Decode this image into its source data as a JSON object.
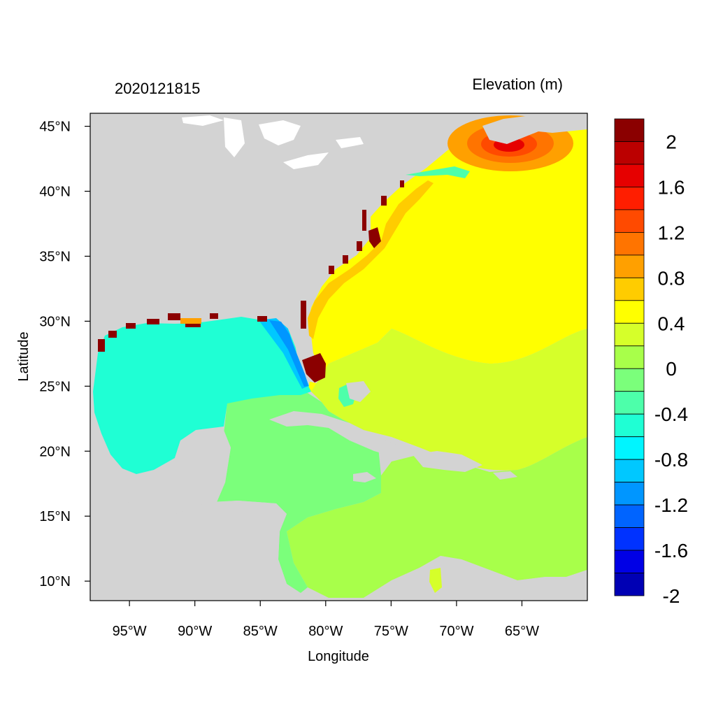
{
  "header": {
    "date_label": "2020121815",
    "variable_label": "Elevation (m)"
  },
  "axes": {
    "xlabel": "Longitude",
    "ylabel": "Latitude",
    "x_ticks": [
      {
        "value": -95,
        "label": "95°W"
      },
      {
        "value": -90,
        "label": "90°W"
      },
      {
        "value": -85,
        "label": "85°W"
      },
      {
        "value": -80,
        "label": "80°W"
      },
      {
        "value": -75,
        "label": "75°W"
      },
      {
        "value": -70,
        "label": "70°W"
      },
      {
        "value": -65,
        "label": "65°W"
      }
    ],
    "y_ticks": [
      {
        "value": 45,
        "label": "45°N"
      },
      {
        "value": 40,
        "label": "40°N"
      },
      {
        "value": 35,
        "label": "35°N"
      },
      {
        "value": 30,
        "label": "30°N"
      },
      {
        "value": 25,
        "label": "25°N"
      },
      {
        "value": 20,
        "label": "20°N"
      },
      {
        "value": 15,
        "label": "15°N"
      },
      {
        "value": 10,
        "label": "10°N"
      }
    ],
    "lon_range": [
      -98,
      -60
    ],
    "lat_range": [
      8.5,
      46
    ]
  },
  "colors": {
    "land": "#d3d3d3",
    "gulf": "#1fffd4",
    "caribbean_west": "#7bff7b",
    "caribbean_east": "#a8ff4a",
    "atlantic_south": "#d6ff2a",
    "atlantic": "#ffff00",
    "coast_orange": "#ffcc00",
    "coast_red": "#8b0000",
    "high_center": "#ff2200"
  },
  "colorbar": {
    "levels": [
      {
        "color": "#8b0000"
      },
      {
        "color": "#bb0000"
      },
      {
        "color": "#e60000"
      },
      {
        "color": "#ff1e00"
      },
      {
        "color": "#ff4a00"
      },
      {
        "color": "#ff7400"
      },
      {
        "color": "#ffa000"
      },
      {
        "color": "#ffcc00"
      },
      {
        "color": "#ffff00"
      },
      {
        "color": "#d6ff2a"
      },
      {
        "color": "#a8ff4a"
      },
      {
        "color": "#7bff7b"
      },
      {
        "color": "#4dffaa"
      },
      {
        "color": "#1fffd4"
      },
      {
        "color": "#00f5ff"
      },
      {
        "color": "#00c8ff"
      },
      {
        "color": "#0096ff"
      },
      {
        "color": "#0064ff"
      },
      {
        "color": "#0032ff"
      },
      {
        "color": "#0000e6"
      },
      {
        "color": "#0000b4"
      }
    ],
    "labels": [
      "2",
      "1.6",
      "1.2",
      "0.8",
      "0.4",
      "0",
      "-0.4",
      "-0.8",
      "-1.2",
      "-1.6",
      "-2"
    ]
  }
}
